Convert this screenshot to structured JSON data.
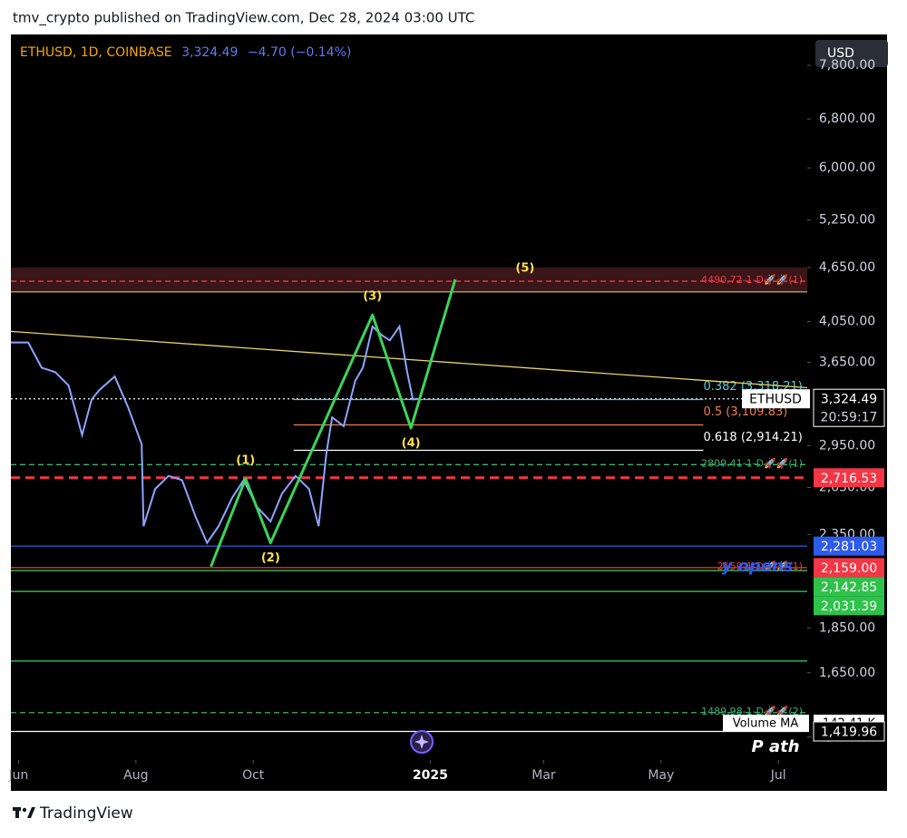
{
  "header": {
    "publisher": "tmv_crypto published on TradingView.com, Dec 28, 2024 03:00 UTC",
    "footer": "TradingView"
  },
  "chart_data": {
    "type": "line",
    "symbol": "ETHUSD, 1D, COINBASE",
    "last_price_label": "3,324.49",
    "change_label": "−4.70 (−0.14%)",
    "currency": "USD",
    "log_scale": true,
    "x": [
      -4,
      5,
      12,
      19,
      26,
      33,
      38,
      42,
      50,
      57,
      64,
      65,
      71,
      78,
      85,
      92,
      98,
      104,
      111,
      117,
      124,
      131,
      137,
      144,
      151,
      156,
      160,
      163,
      169,
      175,
      179,
      184,
      189,
      193,
      198,
      202,
      205,
      209
    ],
    "series": [
      {
        "name": "ETHUSD",
        "color": "#8fa4ff",
        "values": [
          3840,
          3840,
          3600,
          3560,
          3440,
          3030,
          3320,
          3400,
          3520,
          3250,
          2960,
          2400,
          2640,
          2730,
          2700,
          2460,
          2300,
          2400,
          2580,
          2700,
          2520,
          2430,
          2610,
          2730,
          2640,
          2400,
          2890,
          3170,
          3100,
          3480,
          3600,
          4000,
          3910,
          3860,
          4000,
          3560,
          3320,
          3324.49
        ]
      }
    ],
    "xlim": [
      -4,
      410
    ],
    "xticks": [
      {
        "value": 0,
        "label": "Jun"
      },
      {
        "value": 61,
        "label": "Aug"
      },
      {
        "value": 122,
        "label": "Oct"
      },
      {
        "value": 214,
        "label": "2025"
      },
      {
        "value": 273,
        "label": "Mar"
      },
      {
        "value": 334,
        "label": "May"
      },
      {
        "value": 395,
        "label": "Jul"
      }
    ],
    "ylim": [
      1320,
      8440
    ],
    "yticks": [
      {
        "value": 7800,
        "label": "7,800.00"
      },
      {
        "value": 6800,
        "label": "6,800.00"
      },
      {
        "value": 6000,
        "label": "6,000.00"
      },
      {
        "value": 5250,
        "label": "5,250.00"
      },
      {
        "value": 4650,
        "label": "4,650.00"
      },
      {
        "value": 4050,
        "label": "4,050.00"
      },
      {
        "value": 3650,
        "label": "3,650.00"
      },
      {
        "value": 2950,
        "label": "2,950.00"
      },
      {
        "value": 2650,
        "label": "2,650.00"
      },
      {
        "value": 2350,
        "label": "2,350.00"
      },
      {
        "value": 1850,
        "label": "1,850.00"
      },
      {
        "value": 1650,
        "label": "1,650.00"
      },
      {
        "value": 1400,
        "label": "1,400.00"
      }
    ],
    "zone": {
      "from": 4370,
      "to": 4650,
      "color": "#3a1618"
    },
    "trendline": {
      "x": [
        -4,
        410
      ],
      "values": [
        3950,
        3420
      ],
      "color": "#e8d46a"
    },
    "wave": {
      "color": "#3cd35a",
      "x": [
        100,
        118,
        131,
        184,
        204,
        227
      ],
      "values": [
        2165,
        2710,
        2300,
        4120,
        3085,
        4510
      ]
    },
    "wave_labels": [
      "(1)",
      "(2)",
      "(3)",
      "(4)",
      "(5)"
    ],
    "levels": [
      {
        "value": 4490.72,
        "color": "#f23645",
        "style": "dashed",
        "label": "4490.72-1-D🚀🚀(1)"
      },
      {
        "value": 4370,
        "color": "#b5a642",
        "style": "solid"
      },
      {
        "value": 3324.49,
        "color": "#ffffff",
        "style": "dotted"
      },
      {
        "value": 2809.41,
        "color": "#3cb371",
        "style": "dashed",
        "label": "2809.41-1-D🚀🚀(1)"
      },
      {
        "value": 2716.53,
        "color": "#f23645",
        "style": "thick-dashed"
      },
      {
        "value": 2281.03,
        "color": "#2f5bea",
        "style": "solid"
      },
      {
        "value": 2159,
        "color": "#f23645",
        "style": "solid",
        "label": "2159-1-D🚀🚀(1)"
      },
      {
        "value": 2142.85,
        "color": "#3cd35a",
        "style": "solid"
      },
      {
        "value": 2031.39,
        "color": "#3cd35a",
        "style": "solid"
      },
      {
        "value": 1700,
        "color": "#3cd35a",
        "style": "solid"
      },
      {
        "value": 1489.98,
        "color": "#3cb371",
        "style": "dashed",
        "label": "1489.98-1-D🚀🚀(2)"
      },
      {
        "value": 1419.96,
        "color": "#ffffff",
        "style": "solid"
      }
    ],
    "fib": {
      "x": [
        143,
        356
      ],
      "levels": [
        {
          "value": 3318.21,
          "label": "0.382 (3,318.21)",
          "color": "#4dd0e1"
        },
        {
          "value": 3109.83,
          "label": "0.5 (3,109.83)",
          "color": "#f57c4a"
        },
        {
          "value": 2914.21,
          "label": "0.618 (2,914.21)",
          "color": "#ffffff"
        }
      ]
    },
    "price_tags": [
      {
        "value": 3324.49,
        "label": "3,324.49",
        "sublabel": "20:59:17",
        "name_label": "ETHUSD",
        "color": "#000000"
      },
      {
        "value": 2716.53,
        "label": "2,716.53",
        "color": "#f23645"
      },
      {
        "value": 2281.03,
        "label": "2,281.03",
        "color": "#2f5bea"
      },
      {
        "value": 2159,
        "label": "2,159.00",
        "color": "#f23645"
      },
      {
        "value": 2142.85,
        "label": "2,142.85",
        "color": "#2ec24a"
      },
      {
        "value": 2031.39,
        "label": "2,031.39",
        "color": "#2ec24a"
      },
      {
        "value": 1419.96,
        "label": "1,419.96",
        "color": "#000000"
      }
    ],
    "indicator": {
      "name": "Volume MA",
      "value": 142410,
      "value_label": "142.41 K"
    },
    "text_annotations": [
      "y opens",
      "P ath"
    ]
  }
}
